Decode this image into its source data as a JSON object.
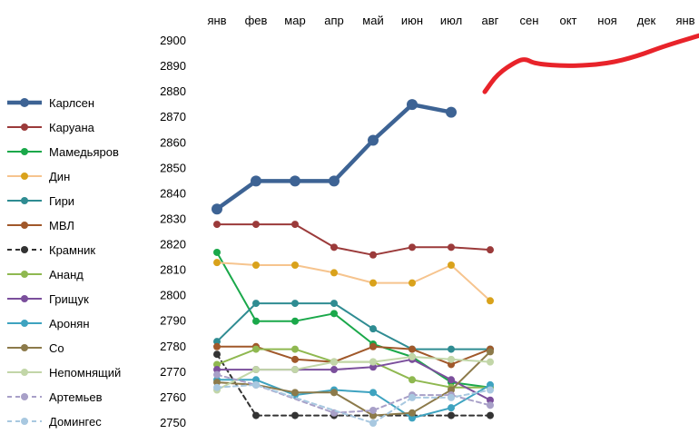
{
  "chart_data": {
    "type": "line",
    "title": "",
    "xlabel": "",
    "ylabel": "",
    "categories": [
      "янв",
      "фев",
      "мар",
      "апр",
      "май",
      "июн",
      "июл",
      "авг",
      "сен",
      "окт",
      "ноя",
      "дек",
      "янв"
    ],
    "ylim": [
      2750,
      2900
    ],
    "y_ticks": [
      "2900",
      "2890",
      "2880",
      "2870",
      "2860",
      "2850",
      "2840",
      "2830",
      "2820",
      "2810",
      "2800",
      "2790",
      "2780",
      "2770",
      "2760",
      "2750"
    ],
    "grid": false,
    "legend_position": "left",
    "series": [
      {
        "name": "Карлсен",
        "color": "#3d6394",
        "width": 4.5,
        "marker": 6,
        "dash": "",
        "values": [
          2834,
          2845,
          2845,
          2845,
          2861,
          2875,
          2872,
          null,
          null,
          null,
          null,
          null,
          null
        ]
      },
      {
        "name": "Каруана",
        "color": "#9b3a3a",
        "width": 2,
        "marker": 4,
        "dash": "",
        "values": [
          2828,
          2828,
          2828,
          2819,
          2816,
          2819,
          2819,
          2818,
          null,
          null,
          null,
          null,
          null
        ]
      },
      {
        "name": "Мамедьяров",
        "color": "#1aa84a",
        "width": 2,
        "marker": 4,
        "dash": "",
        "values": [
          2817,
          2790,
          2790,
          2793,
          2781,
          2776,
          2766,
          2764,
          null,
          null,
          null,
          null,
          null
        ]
      },
      {
        "name": "Дин",
        "color": "#f6c48e",
        "width": 2,
        "marker": 4,
        "marker_color": "#d9a21b",
        "dash": "",
        "values": [
          2813,
          2812,
          2812,
          2809,
          2805,
          2805,
          2812,
          2798,
          null,
          null,
          null,
          null,
          null
        ]
      },
      {
        "name": "Гири",
        "color": "#2f8c92",
        "width": 2,
        "marker": 4,
        "dash": "",
        "values": [
          2782,
          2797,
          2797,
          2797,
          2787,
          2779,
          2779,
          2779,
          null,
          null,
          null,
          null,
          null
        ]
      },
      {
        "name": "МВЛ",
        "color": "#a0582a",
        "width": 2,
        "marker": 4,
        "dash": "",
        "values": [
          2780,
          2780,
          2775,
          2774,
          2780,
          2779,
          2773,
          2779,
          null,
          null,
          null,
          null,
          null
        ]
      },
      {
        "name": "Крамник",
        "color": "#333333",
        "width": 2,
        "marker": 4,
        "dash": "5,4",
        "values": [
          2777,
          2753,
          2753,
          2753,
          2753,
          2753,
          2753,
          2753,
          null,
          null,
          null,
          null,
          null
        ]
      },
      {
        "name": "Ананд",
        "color": "#8fb850",
        "width": 2,
        "marker": 4,
        "dash": "",
        "values": [
          2773,
          2779,
          2779,
          2774,
          2774,
          2767,
          2764,
          2764,
          null,
          null,
          null,
          null,
          null
        ]
      },
      {
        "name": "Грищук",
        "color": "#7b4f9c",
        "width": 2,
        "marker": 4,
        "dash": "",
        "values": [
          2771,
          2771,
          2771,
          2771,
          2772,
          2775,
          2767,
          2759,
          null,
          null,
          null,
          null,
          null
        ]
      },
      {
        "name": "Аронян",
        "color": "#3ea3c0",
        "width": 2,
        "marker": 4,
        "dash": "",
        "values": [
          2767,
          2767,
          2761,
          2763,
          2762,
          2752,
          2756,
          2765,
          null,
          null,
          null,
          null,
          null
        ]
      },
      {
        "name": "Со",
        "color": "#8c7a4a",
        "width": 2,
        "marker": 4,
        "dash": "",
        "values": [
          2766,
          2765,
          2762,
          2762,
          2753,
          2754,
          2763,
          2778,
          null,
          null,
          null,
          null,
          null
        ]
      },
      {
        "name": "Непомнящий",
        "color": "#c2d6a8",
        "width": 2,
        "marker": 4,
        "dash": "",
        "values": [
          2763,
          2771,
          2771,
          2774,
          2774,
          2776,
          2775,
          2774,
          null,
          null,
          null,
          null,
          null
        ]
      },
      {
        "name": "Артемьев",
        "color": "#a8a0c8",
        "width": 2,
        "marker": 4,
        "dash": "5,4",
        "values": [
          2769,
          2765,
          null,
          2754,
          2755,
          2761,
          2761,
          2757,
          null,
          null,
          null,
          null,
          null
        ]
      },
      {
        "name": "Домингес",
        "color": "#a8c8e0",
        "width": 2,
        "marker": 4,
        "dash": "5,4",
        "values": [
          2764,
          2765,
          null,
          null,
          2750,
          2760,
          2760,
          2763,
          null,
          null,
          null,
          null,
          null
        ]
      }
    ],
    "annotation": {
      "type": "freehand-forecast",
      "color": "#e8232a",
      "x_range": [
        "авг",
        "янв"
      ],
      "y_range": [
        2880,
        2903
      ]
    }
  }
}
